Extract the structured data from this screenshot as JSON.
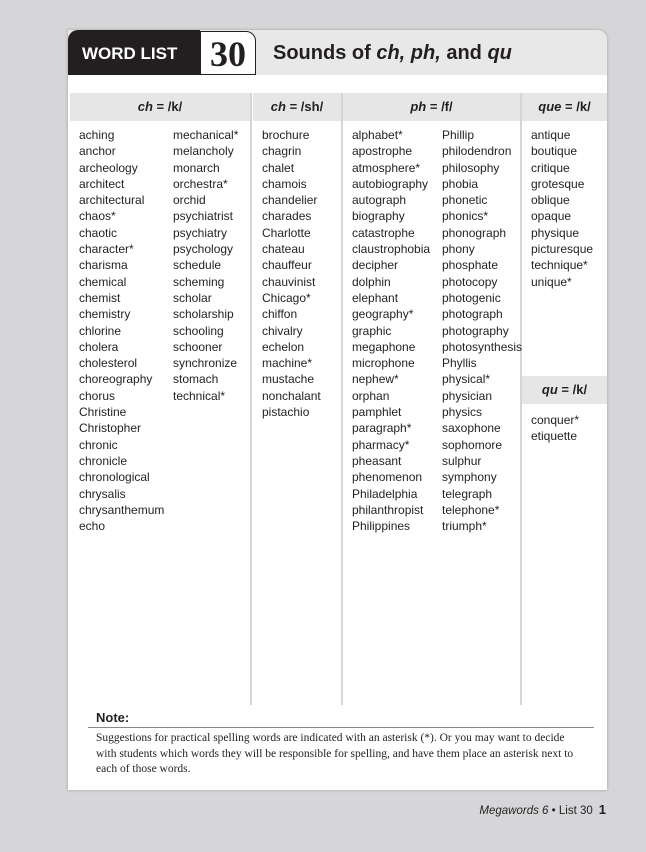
{
  "header": {
    "tab_label": "WORD LIST",
    "list_number": "30",
    "title_parts": [
      "Sounds of ",
      "ch, ph,",
      " and ",
      "qu"
    ]
  },
  "columns": [
    {
      "heading_sound": "ch",
      "heading_value": " = /k/",
      "words": [
        [
          "aching",
          "anchor",
          "archeology",
          "architect",
          "architectural",
          "chaos*",
          "chaotic",
          "character*",
          "charisma",
          "chemical",
          "chemist",
          "chemistry",
          "chlorine",
          "cholera",
          "cholesterol",
          "choreography",
          "chorus",
          "Christine",
          "Christopher",
          "chronic",
          "chronicle",
          "chronological",
          "chrysalis",
          "chrysanthemum",
          "echo"
        ],
        [
          "mechanical*",
          "melancholy",
          "monarch",
          "orchestra*",
          "orchid",
          "psychiatrist",
          "psychiatry",
          "psychology",
          "schedule",
          "scheming",
          "scholar",
          "scholarship",
          "schooling",
          "schooner",
          "synchronize",
          "stomach",
          "technical*"
        ]
      ]
    },
    {
      "heading_sound": "ch",
      "heading_value": " = /sh/",
      "words": [
        [
          "brochure",
          "chagrin",
          "chalet",
          "chamois",
          "chandelier",
          "charades",
          "Charlotte",
          "chateau",
          "chauffeur",
          "chauvinist",
          "Chicago*",
          "chiffon",
          "chivalry",
          "echelon",
          "machine*",
          "mustache",
          "nonchalant",
          "pistachio"
        ]
      ]
    },
    {
      "heading_sound": "ph",
      "heading_value": " = /f/",
      "words": [
        [
          "alphabet*",
          "apostrophe",
          "atmosphere*",
          "autobiography",
          "autograph",
          "biography",
          "catastrophe",
          "claustrophobia",
          "decipher",
          "dolphin",
          "elephant",
          "geography*",
          "graphic",
          "megaphone",
          "microphone",
          "nephew*",
          "orphan",
          "pamphlet",
          "paragraph*",
          "pharmacy*",
          "pheasant",
          "phenomenon",
          "Philadelphia",
          "philanthropist",
          "Philippines"
        ],
        [
          "Phillip",
          "philodendron",
          "philosophy",
          "phobia",
          "phonetic",
          "phonics*",
          "phonograph",
          "phony",
          "phosphate",
          "photocopy",
          "photogenic",
          "photograph",
          "photography",
          "photosynthesis",
          "Phyllis",
          "physical*",
          "physician",
          "physics",
          "saxophone",
          "sophomore",
          "sulphur",
          "symphony",
          "telegraph",
          "telephone*",
          "triumph*"
        ]
      ]
    },
    {
      "heading_sound": "que",
      "heading_value": " = /k/",
      "words": [
        [
          "antique",
          "boutique",
          "critique",
          "grotesque",
          "oblique",
          "opaque",
          "physique",
          "picturesque",
          "technique*",
          "unique*"
        ]
      ]
    },
    {
      "heading_sound": "qu",
      "heading_value": " = /k/",
      "words": [
        [
          "conquer*",
          "etiquette"
        ]
      ]
    }
  ],
  "note": {
    "heading": "Note:",
    "text": "Suggestions for practical spelling words are indicated with an asterisk (*). Or you may want to decide with students which words they will be responsible for spelling, and have them place an asterisk next to each of those words."
  },
  "footer": {
    "book": "Megawords 6",
    "separator": " • ",
    "list": "List 30",
    "page_number": "1"
  }
}
